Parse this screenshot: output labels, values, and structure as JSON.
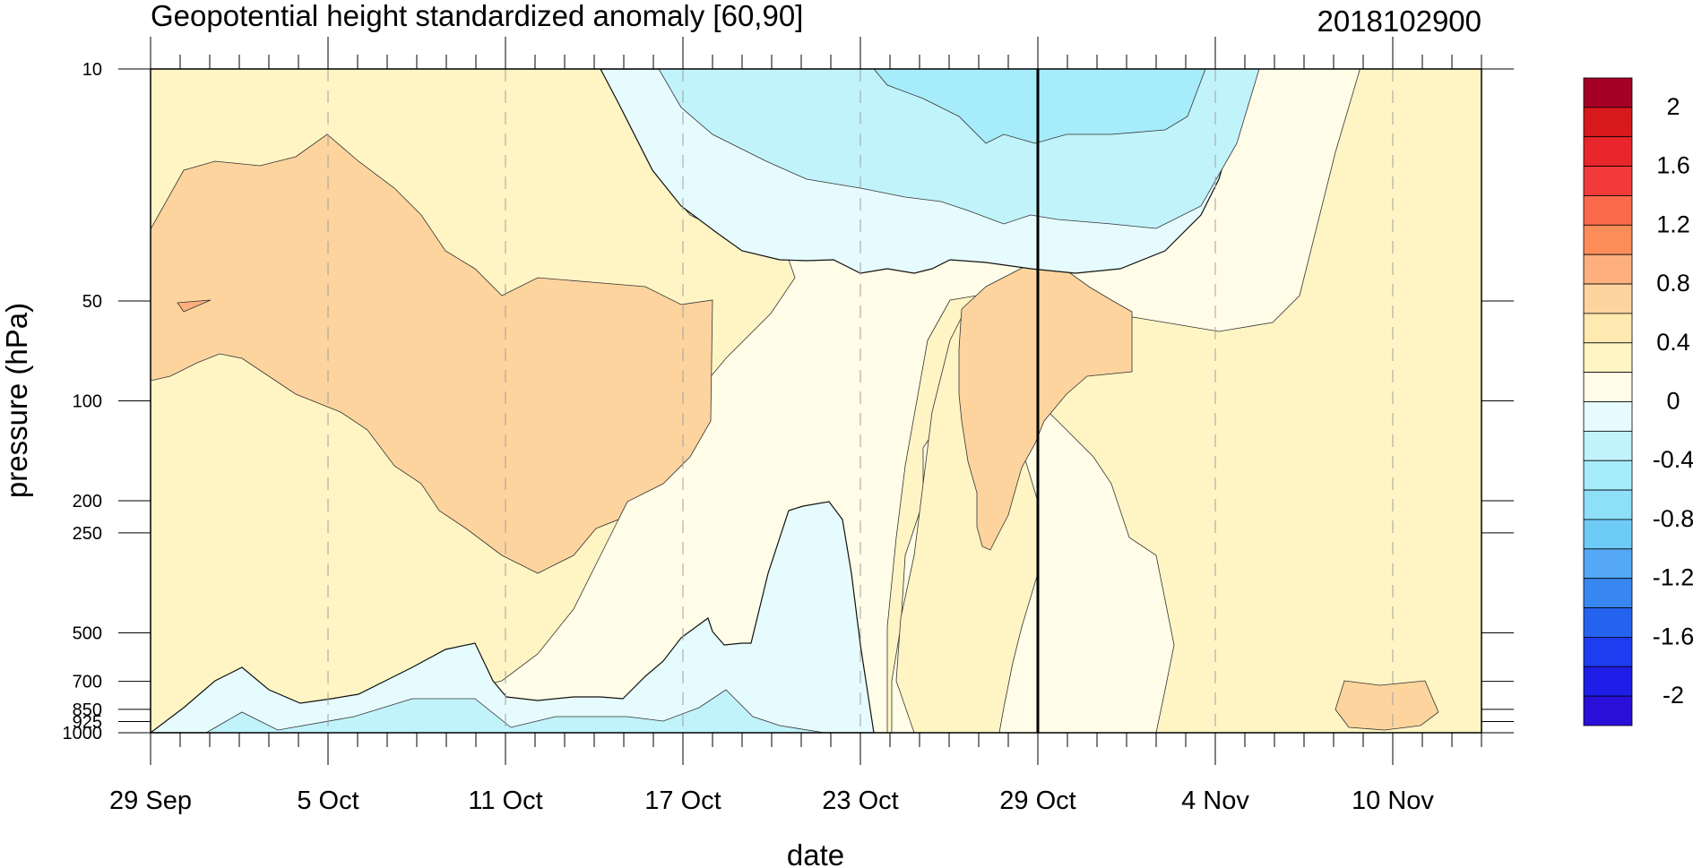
{
  "chart_data": {
    "type": "heatmap",
    "title": "Geopotential height standardized anomaly [60,90]",
    "date_label": "2018102900",
    "xlabel": "date",
    "ylabel": "pressure (hPa)",
    "x_ticks": [
      "29 Sep",
      "5 Oct",
      "11 Oct",
      "17 Oct",
      "23 Oct",
      "29 Oct",
      "4 Nov",
      "10 Nov"
    ],
    "x_tick_day_offsets": [
      0,
      6,
      12,
      18,
      24,
      30,
      36,
      42
    ],
    "x_range_days": [
      0,
      45
    ],
    "current_day_offset": 30,
    "y_ticks": [
      "10",
      "50",
      "100",
      "200",
      "250",
      "500",
      "700",
      "850",
      "925",
      "1000"
    ],
    "y_tick_values": [
      10,
      50,
      100,
      200,
      250,
      500,
      700,
      850,
      925,
      1000
    ],
    "y_scale": "log",
    "y_range": [
      1000,
      10
    ],
    "colorbar": {
      "labels": [
        "2",
        "1.6",
        "1.2",
        "0.8",
        "0.4",
        "0",
        "-0.4",
        "-0.8",
        "-1.2",
        "-1.6",
        "-2"
      ],
      "colors": [
        "#a50026",
        "#d7191c",
        "#e8262b",
        "#f23a3a",
        "#fb6a4a",
        "#fc8d59",
        "#fdb07e",
        "#fdd49e",
        "#fee9b0",
        "#fff5c4",
        "#fffde7",
        "#e6fbfd",
        "#c1f3fb",
        "#a6ecfb",
        "#8edff8",
        "#6ecbf5",
        "#54a8f5",
        "#3886f0",
        "#2563ef",
        "#1e3cf0",
        "#1f1ee8",
        "#2a0fd8"
      ]
    }
  }
}
